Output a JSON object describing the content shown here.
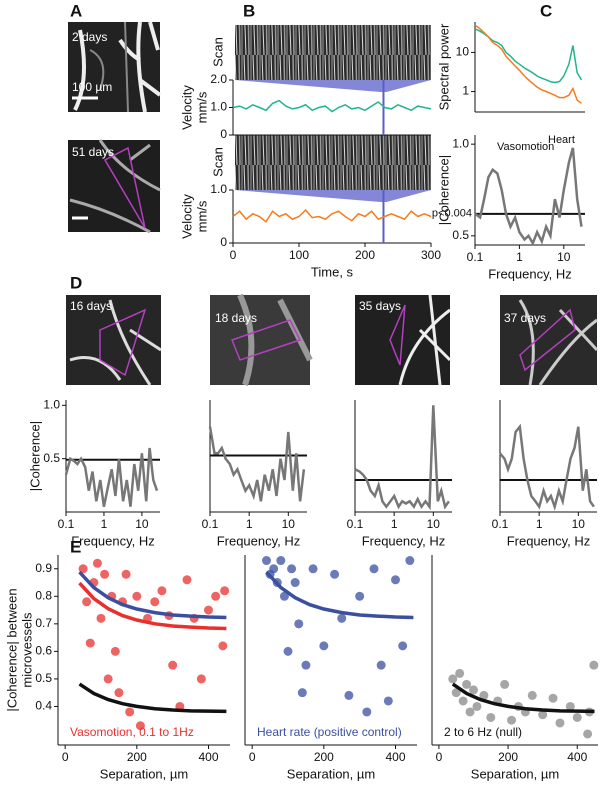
{
  "panels": [
    "A",
    "B",
    "C",
    "D",
    "E"
  ],
  "images": [
    {
      "label": "2 days",
      "scale_label": "100 µm"
    },
    {
      "label": "51 days"
    },
    {
      "label": "16 days"
    },
    {
      "label": "18 days"
    },
    {
      "label": "35 days"
    },
    {
      "label": "37 days"
    }
  ],
  "chart_data": [
    {
      "type": "line",
      "image_label": "Scan",
      "ylabel": [
        "Velocity",
        "mm/s"
      ],
      "x": [
        0,
        10,
        20,
        30,
        40,
        50,
        60,
        70,
        80,
        90,
        100,
        110,
        120,
        130,
        140,
        150,
        160,
        170,
        180,
        190,
        200,
        210,
        220,
        230,
        240,
        250,
        260,
        270,
        280,
        290,
        300
      ],
      "series": [
        {
          "color": "#1fb58f",
          "values": [
            1.0,
            1.05,
            0.95,
            1.1,
            1.0,
            0.9,
            1.15,
            1.25,
            1.05,
            0.95,
            1.0,
            1.1,
            0.9,
            1.0,
            1.05,
            0.85,
            1.0,
            1.1,
            0.95,
            1.0,
            0.9,
            1.05,
            1.2,
            1.0,
            0.95,
            1.1,
            1.0,
            0.9,
            1.05,
            1.0,
            0.95
          ]
        }
      ],
      "xlim": [
        0,
        300
      ],
      "ylim": [
        0,
        2
      ],
      "yticks": [
        0,
        {
          "value": 1,
          "label": "1.0"
        },
        {
          "value": 2,
          "label": "2.0"
        }
      ],
      "marker_x": 228
    },
    {
      "type": "line",
      "image_label": "Scan",
      "ylabel": [
        "Velocity",
        "mm/s"
      ],
      "xlabel": "Time, s",
      "x": [
        0,
        10,
        20,
        30,
        40,
        50,
        60,
        70,
        80,
        90,
        100,
        110,
        120,
        130,
        140,
        150,
        160,
        170,
        180,
        190,
        200,
        210,
        220,
        230,
        240,
        250,
        260,
        270,
        280,
        290,
        300
      ],
      "series": [
        {
          "color": "#f57c1f",
          "values": [
            0.5,
            0.6,
            0.45,
            0.55,
            0.5,
            0.4,
            0.6,
            0.5,
            0.55,
            0.45,
            0.5,
            0.62,
            0.48,
            0.5,
            0.45,
            0.55,
            0.6,
            0.5,
            0.42,
            0.55,
            0.5,
            0.6,
            0.45,
            0.5,
            0.55,
            0.5,
            0.45,
            0.6,
            0.5,
            0.55,
            0.5
          ]
        }
      ],
      "xlim": [
        0,
        300
      ],
      "xticks": [
        0,
        100,
        200,
        300
      ],
      "ylim": [
        0,
        1
      ],
      "yticks": [
        0,
        {
          "value": 1,
          "label": "1.0"
        }
      ],
      "marker_x": 228
    },
    {
      "type": "line",
      "ylabel": [
        "Spectral power"
      ],
      "xlog": true,
      "ylog": true,
      "x": [
        0.1,
        0.13,
        0.16,
        0.2,
        0.25,
        0.32,
        0.4,
        0.5,
        0.63,
        0.8,
        1,
        1.3,
        1.6,
        2,
        2.5,
        3.2,
        4,
        5,
        6.3,
        8,
        10,
        13,
        16,
        20,
        25
      ],
      "series": [
        {
          "color": "#1fb58f",
          "values": [
            40,
            35,
            30,
            25,
            20,
            18,
            15,
            10,
            8,
            6,
            5,
            4,
            3.5,
            3,
            2.5,
            2.2,
            2,
            1.8,
            1.7,
            1.8,
            2.5,
            5,
            15,
            3,
            2
          ]
        },
        {
          "color": "#f57c1f",
          "values": [
            50,
            40,
            32,
            25,
            18,
            15,
            12,
            8,
            6,
            4.5,
            3.5,
            2.5,
            2,
            1.6,
            1.3,
            1.1,
            1,
            0.9,
            0.8,
            0.7,
            0.7,
            0.8,
            1.2,
            0.6,
            0.5
          ]
        }
      ],
      "xlim": [
        0.1,
        30
      ],
      "ylim": [
        0.3,
        60
      ],
      "yticks": [
        1,
        10
      ]
    },
    {
      "type": "line",
      "ylabel": [
        "|Coherence|"
      ],
      "xlabel": "Frequency, Hz",
      "xlog": true,
      "x": [
        0.1,
        0.13,
        0.16,
        0.2,
        0.25,
        0.32,
        0.4,
        0.5,
        0.63,
        0.8,
        1,
        1.3,
        1.6,
        2,
        2.5,
        3.2,
        4,
        5,
        6.3,
        8,
        10,
        13,
        16,
        20,
        25
      ],
      "series": [
        {
          "color": "#777777",
          "values": [
            0.62,
            0.6,
            0.7,
            0.82,
            0.86,
            0.84,
            0.75,
            0.62,
            0.55,
            0.6,
            0.52,
            0.48,
            0.5,
            0.46,
            0.52,
            0.47,
            0.55,
            0.5,
            0.7,
            0.6,
            0.75,
            0.9,
            0.98,
            0.7,
            0.55
          ]
        }
      ],
      "xlim": [
        0.1,
        30
      ],
      "xticks": [
        0.1,
        1,
        10
      ],
      "ylim": [
        0.45,
        1.05
      ],
      "yticks": [
        0.5,
        {
          "value": 1,
          "label": "1.0"
        }
      ],
      "hline": 0.62,
      "hline_label": "p<0.004",
      "annotations": [
        "Vasomotion",
        "Heart"
      ]
    },
    {
      "type": "line",
      "ylabel": [
        "|Coherence|"
      ],
      "xlabel": "Frequency, Hz",
      "xlog": true,
      "x": [
        0.1,
        0.13,
        0.16,
        0.2,
        0.25,
        0.32,
        0.4,
        0.5,
        0.63,
        0.8,
        1,
        1.3,
        1.6,
        2,
        2.5,
        3.2,
        4,
        5,
        6.3,
        8,
        10,
        13,
        16,
        20,
        25
      ],
      "series": [
        {
          "color": "#777777",
          "values": [
            0.35,
            0.5,
            0.48,
            0.45,
            0.5,
            0.42,
            0.2,
            0.38,
            0.1,
            0.3,
            0.05,
            0.25,
            0.4,
            0.15,
            0.5,
            0.1,
            0.3,
            0.05,
            0.45,
            0.2,
            0.55,
            0.1,
            0.6,
            0.3,
            0.2
          ]
        }
      ],
      "xlim": [
        0.1,
        30
      ],
      "xticks": [
        0.1,
        1,
        10
      ],
      "ylim": [
        0,
        1.05
      ],
      "yticks": [
        0.5,
        {
          "value": 1,
          "label": "1.0"
        }
      ],
      "hline": 0.49
    },
    {
      "type": "line",
      "xlabel": "Frequency, Hz",
      "xlog": true,
      "x": [
        0.1,
        0.13,
        0.16,
        0.2,
        0.25,
        0.32,
        0.4,
        0.5,
        0.63,
        0.8,
        1,
        1.3,
        1.6,
        2,
        2.5,
        3.2,
        4,
        5,
        6.3,
        8,
        10,
        13,
        16,
        20,
        25
      ],
      "series": [
        {
          "color": "#777777",
          "values": [
            0.8,
            0.55,
            0.55,
            0.6,
            0.5,
            0.45,
            0.35,
            0.4,
            0.3,
            0.2,
            0.25,
            0.15,
            0.3,
            0.1,
            0.35,
            0.2,
            0.4,
            0.15,
            0.5,
            0.3,
            0.75,
            0.2,
            0.55,
            0.1,
            0.4
          ]
        }
      ],
      "xlim": [
        0.1,
        30
      ],
      "xticks": [
        0.1,
        1,
        10
      ],
      "ylim": [
        0,
        1.05
      ],
      "hline": 0.53
    },
    {
      "type": "line",
      "xlabel": "Frequency, Hz",
      "xlog": true,
      "x": [
        0.1,
        0.13,
        0.16,
        0.2,
        0.25,
        0.32,
        0.4,
        0.5,
        0.63,
        0.8,
        1,
        1.3,
        1.6,
        2,
        2.5,
        3.2,
        4,
        5,
        6.3,
        8,
        10,
        13,
        16,
        20,
        25
      ],
      "series": [
        {
          "color": "#777777",
          "values": [
            0.4,
            0.38,
            0.35,
            0.3,
            0.2,
            0.15,
            0.25,
            0.1,
            0.05,
            0.1,
            0.15,
            0.05,
            0.1,
            0.08,
            0.1,
            0.05,
            0.12,
            0.05,
            0.1,
            0.05,
            1.0,
            0.1,
            0.2,
            0.05,
            0.1
          ]
        }
      ],
      "xlim": [
        0.1,
        30
      ],
      "xticks": [
        0.1,
        1,
        10
      ],
      "ylim": [
        0,
        1.05
      ],
      "hline": 0.3
    },
    {
      "type": "line",
      "xlabel": "Frequency, Hz",
      "xlog": true,
      "x": [
        0.1,
        0.13,
        0.16,
        0.2,
        0.25,
        0.32,
        0.4,
        0.5,
        0.63,
        0.8,
        1,
        1.3,
        1.6,
        2,
        2.5,
        3.2,
        4,
        5,
        6.3,
        8,
        10,
        13,
        16,
        20,
        25
      ],
      "series": [
        {
          "color": "#777777",
          "values": [
            0.55,
            0.5,
            0.4,
            0.5,
            0.75,
            0.8,
            0.5,
            0.3,
            0.15,
            0.1,
            0.05,
            0.2,
            0.1,
            0.15,
            0.05,
            0.2,
            0.1,
            0.3,
            0.5,
            0.6,
            0.8,
            0.2,
            0.4,
            0.1,
            0.05
          ]
        }
      ],
      "xlim": [
        0.1,
        30
      ],
      "xticks": [
        0.1,
        1,
        10
      ],
      "ylim": [
        0,
        1.05
      ],
      "hline": 0.3
    },
    {
      "type": "scatter",
      "ylabel": [
        "|Coherence| between",
        "microvessels"
      ],
      "xlabel": "Separation, µm",
      "note": "Vasomotion, 0.1 to 1Hz",
      "note_color": "#e8302f",
      "series": [
        {
          "color": "#e8302f",
          "x": [
            50,
            60,
            70,
            80,
            90,
            100,
            110,
            120,
            130,
            140,
            150,
            160,
            170,
            180,
            200,
            210,
            230,
            250,
            270,
            290,
            300,
            320,
            340,
            360,
            380,
            400,
            420,
            440,
            445
          ],
          "values": [
            0.9,
            0.78,
            0.63,
            0.85,
            0.92,
            0.72,
            0.88,
            0.5,
            0.8,
            0.6,
            0.45,
            0.78,
            0.88,
            0.38,
            0.8,
            0.33,
            0.72,
            0.78,
            0.82,
            0.73,
            0.55,
            0.4,
            0.86,
            0.72,
            0.5,
            0.75,
            0.8,
            0.62,
            0.82
          ]
        }
      ],
      "fits": [
        {
          "color": "#3a4fa0",
          "x": [
            40,
            80,
            120,
            160,
            200,
            250,
            300,
            350,
            400,
            450
          ],
          "values": [
            0.888,
            0.832,
            0.795,
            0.77,
            0.754,
            0.741,
            0.732,
            0.728,
            0.725,
            0.723
          ]
        },
        {
          "color": "#e8302f",
          "x": [
            40,
            80,
            120,
            160,
            200,
            250,
            300,
            350,
            400,
            450
          ],
          "values": [
            0.848,
            0.792,
            0.755,
            0.73,
            0.714,
            0.7,
            0.692,
            0.688,
            0.685,
            0.683
          ]
        },
        {
          "color": "#111111",
          "x": [
            40,
            80,
            120,
            160,
            200,
            250,
            300,
            350,
            400,
            450
          ],
          "values": [
            0.481,
            0.447,
            0.425,
            0.41,
            0.4,
            0.392,
            0.387,
            0.384,
            0.383,
            0.382
          ]
        }
      ],
      "xlim": [
        -20,
        460
      ],
      "xticks": [
        0,
        200,
        400
      ],
      "ylim": [
        0.26,
        0.95
      ],
      "yticks": [
        0.4,
        0.5,
        0.6,
        0.7,
        0.8,
        0.9
      ]
    },
    {
      "type": "scatter",
      "xlabel": "Separation, µm",
      "note": "Heart rate (positive control)",
      "note_color": "#3a4fa0",
      "series": [
        {
          "color": "#3a4fa0",
          "x": [
            40,
            50,
            60,
            70,
            80,
            90,
            100,
            110,
            120,
            130,
            140,
            150,
            170,
            200,
            230,
            250,
            270,
            300,
            320,
            340,
            360,
            380,
            400,
            420,
            440
          ],
          "values": [
            0.93,
            0.88,
            0.9,
            0.85,
            0.93,
            0.8,
            0.6,
            0.9,
            0.85,
            0.7,
            0.45,
            0.55,
            0.9,
            0.62,
            0.88,
            0.72,
            0.44,
            0.8,
            0.38,
            0.9,
            0.55,
            0.42,
            0.86,
            0.62,
            0.93
          ]
        }
      ],
      "fits": [
        {
          "color": "#3a4fa0",
          "x": [
            40,
            80,
            120,
            160,
            200,
            250,
            300,
            350,
            400,
            450
          ],
          "values": [
            0.888,
            0.832,
            0.795,
            0.77,
            0.754,
            0.741,
            0.732,
            0.728,
            0.725,
            0.723
          ]
        }
      ],
      "xlim": [
        -20,
        460
      ],
      "xticks": [
        0,
        200,
        400
      ],
      "ylim": [
        0.26,
        0.95
      ]
    },
    {
      "type": "scatter",
      "xlabel": "Separation, µm",
      "note": "2 to 6 Hz (null)",
      "note_color": "#111111",
      "series": [
        {
          "color": "#888888",
          "x": [
            40,
            50,
            60,
            70,
            80,
            90,
            100,
            110,
            130,
            150,
            170,
            190,
            210,
            230,
            250,
            270,
            300,
            330,
            350,
            380,
            400,
            430,
            435,
            448
          ],
          "values": [
            0.5,
            0.45,
            0.52,
            0.42,
            0.48,
            0.38,
            0.46,
            0.4,
            0.44,
            0.36,
            0.42,
            0.48,
            0.35,
            0.4,
            0.38,
            0.44,
            0.37,
            0.43,
            0.34,
            0.4,
            0.36,
            0.3,
            0.38,
            0.55
          ]
        }
      ],
      "fits": [
        {
          "color": "#111111",
          "x": [
            40,
            80,
            120,
            160,
            200,
            250,
            300,
            350,
            400,
            450
          ],
          "values": [
            0.481,
            0.447,
            0.425,
            0.41,
            0.4,
            0.392,
            0.387,
            0.384,
            0.383,
            0.382
          ]
        }
      ],
      "xlim": [
        -20,
        460
      ],
      "xticks": [
        0,
        200,
        400
      ],
      "ylim": [
        0.26,
        0.95
      ]
    }
  ]
}
